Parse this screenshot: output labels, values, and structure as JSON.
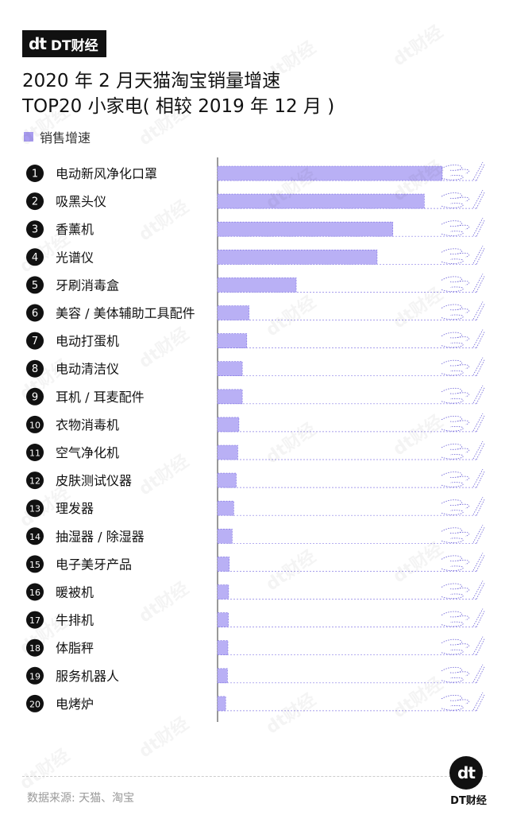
{
  "brand": {
    "mark": "dt",
    "name": "DT财经"
  },
  "title_line1": "2020 年 2 月天猫淘宝销量增速",
  "title_line2": "TOP20 小家电( 相较 2019 年 12 月 )",
  "watermark_text": "dt财经",
  "source": "数据来源: 天猫、淘宝",
  "logo": {
    "mark": "dt",
    "name": "DT财经"
  },
  "colors": {
    "bar": "#b9b0f5",
    "bar_border": "#7a6de0",
    "rank_circle": "#111111",
    "text": "#111111"
  },
  "chart_data": {
    "type": "bar",
    "orientation": "horizontal",
    "legend": [
      "销售增速"
    ],
    "series": [
      {
        "name": "销售增速",
        "values": [
          100,
          92,
          78,
          71,
          35,
          14,
          13,
          11,
          11,
          9.5,
          9,
          8.3,
          7.2,
          6.5,
          5.2,
          4.9,
          4.8,
          4.6,
          4.4,
          3.6
        ]
      }
    ],
    "categories": [
      "电动新风净化口罩",
      "吸黑头仪",
      "香薰机",
      "光谱仪",
      "牙刷消毒盒",
      "美容 / 美体辅助工具配件",
      "电动打蛋机",
      "电动清洁仪",
      "耳机 / 耳麦配件",
      "衣物消毒机",
      "空气净化机",
      "皮肤测试仪器",
      "理发器",
      "抽湿器 / 除湿器",
      "电子美牙产品",
      "暖被机",
      "牛排机",
      "体脂秤",
      "服务机器人",
      "电烤炉"
    ],
    "ranks": [
      "1",
      "2",
      "3",
      "4",
      "5",
      "6",
      "7",
      "8",
      "9",
      "10",
      "11",
      "12",
      "13",
      "14",
      "15",
      "16",
      "17",
      "18",
      "19",
      "20"
    ],
    "xlim": [
      0,
      100
    ],
    "axis_labels_shown": false,
    "grid": false
  }
}
